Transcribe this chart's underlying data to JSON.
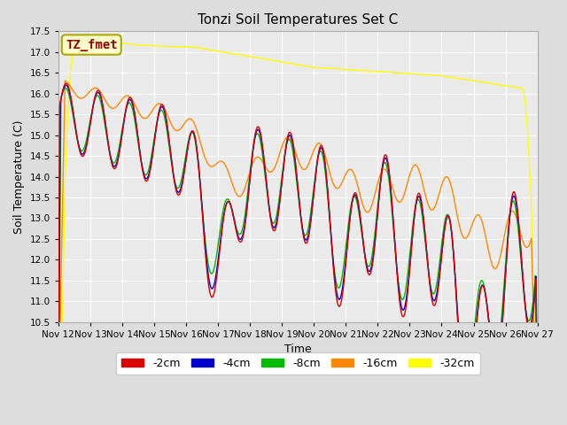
{
  "title": "Tonzi Soil Temperatures Set C",
  "xlabel": "Time",
  "ylabel": "Soil Temperature (C)",
  "ylim": [
    10.5,
    17.5
  ],
  "annotation": "TZ_fmet",
  "annotation_bg": "#ffffcc",
  "annotation_border": "#aaa800",
  "annotation_text_color": "#990000",
  "colors": {
    "-2cm": "#dd0000",
    "-4cm": "#0000cc",
    "-8cm": "#00bb00",
    "-16cm": "#ff8800",
    "-32cm": "#ffff00"
  },
  "legend_labels": [
    "-2cm",
    "-4cm",
    "-8cm",
    "-16cm",
    "-32cm"
  ],
  "x_tick_labels": [
    "Nov 12",
    "Nov 13",
    "Nov 14",
    "Nov 15",
    "Nov 16",
    "Nov 17",
    "Nov 18",
    "Nov 19",
    "Nov 20",
    "Nov 21",
    "Nov 22",
    "Nov 23",
    "Nov 24",
    "Nov 25",
    "Nov 26",
    "Nov 27"
  ],
  "background_color": "#dddddd",
  "plot_bg": "#eaeaea",
  "grid_color": "#ffffff",
  "linewidth": 1.0
}
